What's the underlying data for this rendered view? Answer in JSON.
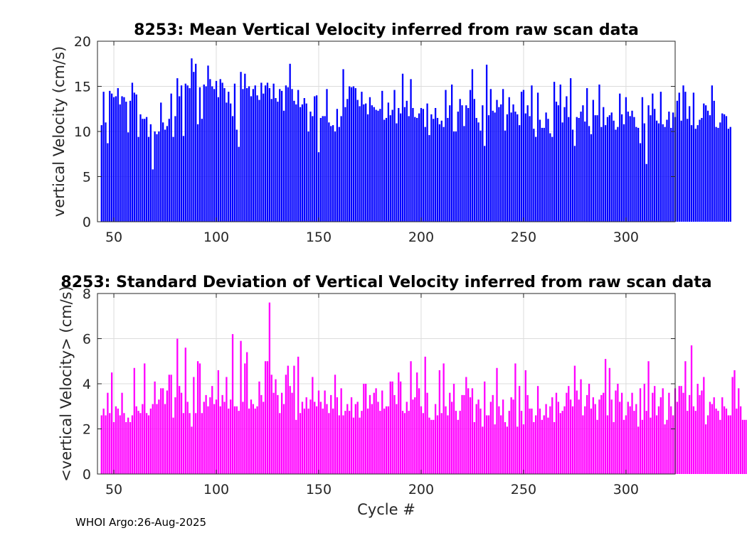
{
  "chart_data": [
    {
      "type": "bar",
      "title": "8253: Mean Vertical Velocity inferred from raw scan data",
      "xlabel": "",
      "ylabel": "vertical Velocity (cm/s)",
      "xlim": [
        42,
        324
      ],
      "ylim": [
        0,
        20
      ],
      "xticks": [
        50,
        100,
        150,
        200,
        250,
        300
      ],
      "yticks": [
        0,
        5,
        10,
        15,
        20
      ],
      "grid": true,
      "color": "#0000ff",
      "x_start": 44,
      "values": [
        10.7,
        14.4,
        11.0,
        8.7,
        14.5,
        14.2,
        13.8,
        13.9,
        14.8,
        13.0,
        13.9,
        13.8,
        13.3,
        9.9,
        13.4,
        15.4,
        14.3,
        14.1,
        9.4,
        11.9,
        11.4,
        11.4,
        11.6,
        9.4,
        10.8,
        5.8,
        10.0,
        9.7,
        10.0,
        13.2,
        11.0,
        10.2,
        10.6,
        11.4,
        14.2,
        9.4,
        11.7,
        15.9,
        13.9,
        15.1,
        9.5,
        15.3,
        15.1,
        14.8,
        18.1,
        16.6,
        17.5,
        10.8,
        14.9,
        11.4,
        15.2,
        15.0,
        17.3,
        15.8,
        15.0,
        14.7,
        15.6,
        13.8,
        15.8,
        15.4,
        14.8,
        13.2,
        14.4,
        13.1,
        11.7,
        15.3,
        10.2,
        8.3,
        16.6,
        14.7,
        16.4,
        14.8,
        15.0,
        13.9,
        14.7,
        15.1,
        14.0,
        13.5,
        15.4,
        14.2,
        15.1,
        15.4,
        14.8,
        13.6,
        15.3,
        13.7,
        13.3,
        14.7,
        14.5,
        12.3,
        15.1,
        14.9,
        17.5,
        14.7,
        13.4,
        13.0,
        14.6,
        12.7,
        13.0,
        13.7,
        13.1,
        10.0,
        12.2,
        11.7,
        13.9,
        14.0,
        7.7,
        11.5,
        11.7,
        11.7,
        14.7,
        11.0,
        10.6,
        10.7,
        10.0,
        12.5,
        10.5,
        11.7,
        16.9,
        12.7,
        13.6,
        15.0,
        14.9,
        15.0,
        14.8,
        13.5,
        12.8,
        14.4,
        13.0,
        13.1,
        11.9,
        13.8,
        12.9,
        12.7,
        12.4,
        12.3,
        12.5,
        14.5,
        11.3,
        11.5,
        13.2,
        11.8,
        12.4,
        14.6,
        10.9,
        12.6,
        12.0,
        16.4,
        12.7,
        13.4,
        11.7,
        15.8,
        12.6,
        11.6,
        11.5,
        12.0,
        12.6,
        12.5,
        10.5,
        13.1,
        9.6,
        11.9,
        11.4,
        12.6,
        11.5,
        10.8,
        11.2,
        10.5,
        14.6,
        11.5,
        12.9,
        15.2,
        10.0,
        10.0,
        12.2,
        13.6,
        12.9,
        10.6,
        12.9,
        12.6,
        14.6,
        16.9,
        13.6,
        11.5,
        11.0,
        10.1,
        12.9,
        8.4,
        17.4,
        11.8,
        14.7,
        12.3,
        12.1,
        13.5,
        12.7,
        13.0,
        14.7,
        10.1,
        11.9,
        13.8,
        12.1,
        13.0,
        12.2,
        11.9,
        10.7,
        14.4,
        14.6,
        12.0,
        12.9,
        11.7,
        15.1,
        10.3,
        9.4,
        14.3,
        11.3,
        10.4,
        10.4,
        12.1,
        11.4,
        9.8,
        9.4,
        15.5,
        13.3,
        12.9,
        15.2,
        11.0,
        12.7,
        13.9,
        11.6,
        15.9,
        10.2,
        8.4,
        11.6,
        11.5,
        12.2,
        12.9,
        11.1,
        14.8,
        10.6,
        9.7,
        13.5,
        11.8,
        11.8,
        15.2,
        10.5,
        12.7,
        10.7,
        11.6,
        11.8,
        12.1,
        11.2,
        10.2,
        10.5,
        14.2,
        11.9,
        10.8,
        13.8,
        12.2,
        11.7,
        12.3,
        11.6,
        10.5,
        10.4,
        8.7,
        13.8,
        10.9,
        6.4,
        12.9,
        11.8,
        14.2,
        12.5,
        11.2,
        10.9,
        14.4,
        10.8,
        10.5,
        11.3,
        12.2,
        10.4,
        12.1,
        11.6,
        13.4,
        14.3,
        11.2,
        15.1,
        14.4,
        11.4,
        12.8,
        10.7,
        14.3,
        10.3,
        10.7,
        11.3,
        11.5,
        13.1,
        12.9,
        12.3,
        11.8,
        15.1,
        13.4,
        10.5,
        10.4,
        11.0,
        12.0,
        11.9,
        11.7,
        10.3,
        10.5
      ]
    },
    {
      "type": "bar",
      "title": "8253: Standard Deviation of Vertical Velocity inferred from raw scan data",
      "xlabel": "Cycle #",
      "ylabel": "<vertical Velocity> (cm/s)",
      "xlim": [
        42,
        324
      ],
      "ylim": [
        0,
        8
      ],
      "xticks": [
        50,
        100,
        150,
        200,
        250,
        300
      ],
      "yticks": [
        0,
        2,
        4,
        6,
        8
      ],
      "grid": true,
      "color": "#ff00ff",
      "x_start": 44,
      "values": [
        2.6,
        2.9,
        2.6,
        3.6,
        2.7,
        4.5,
        2.3,
        3.0,
        2.9,
        2.6,
        3.6,
        2.7,
        2.3,
        2.5,
        2.3,
        2.6,
        4.7,
        3.0,
        2.8,
        2.7,
        3.1,
        4.9,
        2.7,
        2.6,
        2.9,
        3.1,
        4.1,
        3.1,
        3.3,
        3.8,
        3.8,
        3.1,
        3.7,
        4.4,
        4.4,
        2.5,
        3.4,
        6.0,
        3.9,
        3.6,
        2.7,
        5.6,
        3.2,
        2.7,
        2.1,
        4.3,
        2.7,
        5.0,
        4.9,
        2.7,
        3.2,
        3.5,
        3.0,
        3.4,
        3.9,
        3.1,
        3.3,
        4.6,
        3.0,
        3.5,
        3.2,
        4.3,
        2.9,
        3.3,
        6.2,
        3.0,
        3.0,
        2.8,
        5.9,
        3.2,
        4.9,
        5.4,
        2.9,
        3.3,
        3.1,
        2.9,
        3.0,
        4.1,
        3.5,
        3.2,
        5.0,
        5.0,
        7.6,
        4.4,
        3.6,
        4.2,
        3.5,
        2.7,
        3.6,
        3.1,
        4.4,
        4.8,
        3.9,
        3.6,
        4.8,
        2.4,
        5.2,
        2.7,
        3.2,
        2.9,
        3.4,
        2.9,
        3.3,
        4.3,
        3.2,
        3.0,
        3.7,
        3.2,
        2.9,
        3.7,
        3.1,
        2.7,
        3.5,
        2.9,
        4.4,
        3.4,
        2.6,
        3.8,
        2.6,
        2.8,
        3.1,
        2.8,
        3.4,
        2.5,
        3.1,
        3.2,
        2.5,
        2.8,
        4.0,
        4.0,
        2.9,
        3.5,
        3.1,
        3.6,
        3.8,
        3.2,
        2.8,
        3.7,
        2.9,
        3.0,
        3.0,
        4.1,
        4.1,
        3.5,
        3.1,
        4.5,
        4.1,
        2.8,
        2.7,
        3.2,
        2.8,
        5.0,
        3.3,
        3.4,
        4.5,
        3.8,
        3.0,
        2.7,
        5.2,
        3.6,
        2.5,
        2.4,
        2.4,
        3.1,
        2.6,
        4.6,
        2.7,
        4.9,
        3.0,
        2.6,
        3.6,
        3.2,
        4.0,
        2.8,
        2.4,
        2.8,
        3.5,
        3.5,
        4.3,
        3.8,
        3.4,
        3.8,
        2.3,
        3.1,
        3.3,
        2.9,
        2.1,
        4.1,
        2.6,
        2.6,
        3.2,
        3.5,
        2.2,
        4.7,
        3.0,
        2.6,
        3.3,
        2.3,
        2.1,
        2.8,
        3.4,
        3.3,
        4.9,
        2.1,
        3.9,
        2.8,
        2.2,
        4.6,
        3.5,
        2.9,
        2.9,
        2.3,
        2.6,
        3.9,
        2.9,
        2.4,
        2.6,
        3.1,
        2.5,
        3.0,
        3.4,
        2.3,
        3.6,
        3.2,
        2.7,
        2.8,
        3.0,
        3.6,
        3.9,
        3.3,
        3.0,
        4.8,
        3.7,
        3.3,
        4.2,
        2.6,
        3.0,
        3.5,
        4.0,
        2.9,
        3.4,
        3.1,
        2.4,
        3.3,
        3.5,
        3.6,
        5.1,
        2.6,
        4.7,
        3.3,
        2.3,
        3.7,
        4.0,
        3.2,
        3.6,
        2.4,
        2.6,
        3.2,
        3.0,
        3.6,
        2.8,
        3.1,
        2.1,
        3.8,
        2.4,
        4.0,
        2.8,
        5.0,
        2.5,
        3.6,
        3.9,
        2.6,
        3.0,
        3.4,
        3.8,
        2.2,
        2.4,
        3.6,
        3.0,
        2.6,
        3.8,
        3.2,
        3.9,
        3.9,
        3.6,
        5.0,
        2.8,
        3.5,
        5.7,
        3.0,
        2.8,
        4.0,
        3.5,
        3.7,
        4.3,
        2.2,
        2.6,
        3.2,
        3.1,
        3.4,
        2.9,
        2.8,
        2.4,
        3.4,
        3.0,
        2.9,
        2.6,
        2.6,
        4.3,
        4.6,
        2.9,
        3.8,
        3.0,
        2.4,
        2.4,
        2.4,
        4.0,
        3.1,
        2.2,
        2.6,
        3.4
      ]
    }
  ],
  "footer_text": "WHOI Argo:26-Aug-2025"
}
